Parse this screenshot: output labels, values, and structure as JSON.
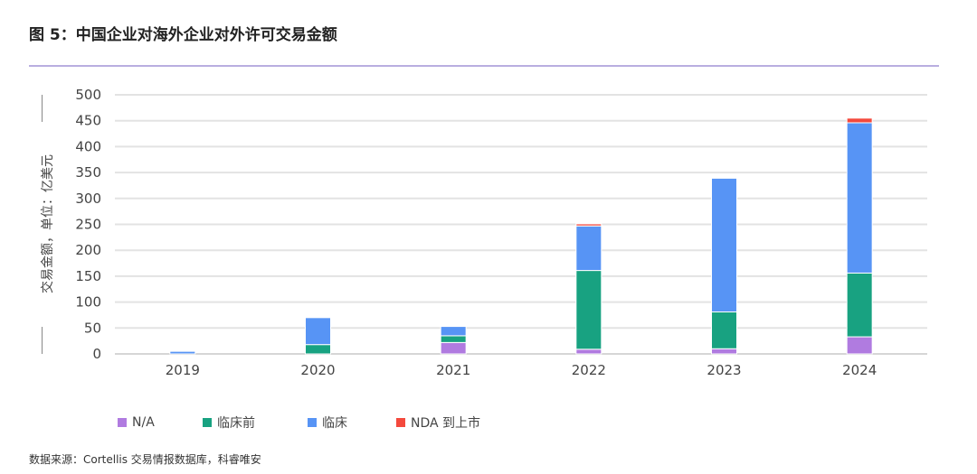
{
  "title": "图 5：中国企业对海外企业对外许可交易金额",
  "source": "数据来源：Cortellis 交易情报数据库，科睿唯安",
  "chart_data": {
    "type": "bar",
    "stacked": true,
    "title": "图 5：中国企业对海外企业对外许可交易金额",
    "xlabel": "",
    "ylabel": "交易金额，单位：亿美元",
    "ylim": [
      0,
      500
    ],
    "yticks": [
      0,
      50,
      100,
      150,
      200,
      250,
      300,
      350,
      400,
      450,
      500
    ],
    "grid": true,
    "legend_position": "bottom-left",
    "categories": [
      "2019",
      "2020",
      "2021",
      "2022",
      "2023",
      "2024"
    ],
    "series": [
      {
        "name": "N/A",
        "color": "#b07be0",
        "values": [
          0,
          0,
          22,
          9,
          10,
          33
        ]
      },
      {
        "name": "临床前",
        "color": "#18a281",
        "values": [
          0,
          18,
          13,
          152,
          71,
          123
        ]
      },
      {
        "name": "临床",
        "color": "#5794f5",
        "values": [
          5,
          52,
          18,
          86,
          258,
          290
        ]
      },
      {
        "name": "NDA 到上市",
        "color": "#f4493d",
        "values": [
          0,
          0,
          0,
          4,
          0,
          9
        ]
      }
    ]
  }
}
